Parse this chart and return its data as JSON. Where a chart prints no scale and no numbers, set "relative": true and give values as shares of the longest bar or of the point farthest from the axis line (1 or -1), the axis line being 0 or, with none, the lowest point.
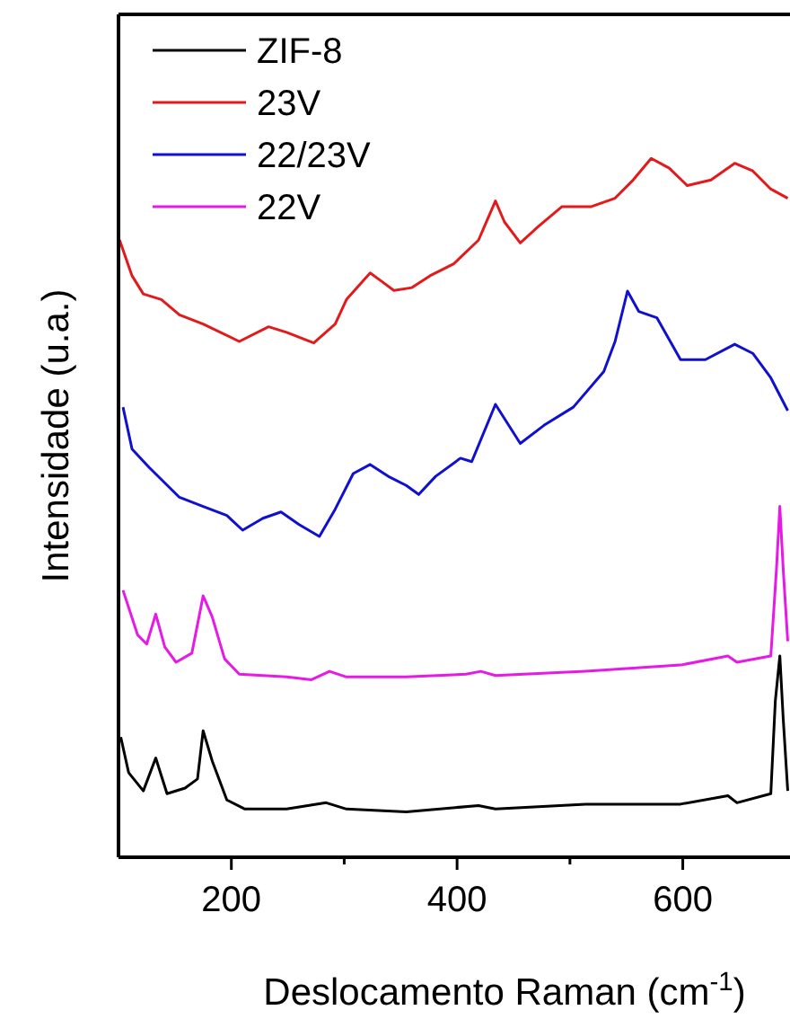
{
  "chart_data": {
    "type": "line",
    "relative": true,
    "xlabel": "Deslocamento Raman (cm$^{-1}$)",
    "ylabel": "Intensidade (u.a.)",
    "xlim": [
      100,
      695
    ],
    "xticks": [
      200,
      {
        "value": 300,
        "label": null
      },
      400,
      {
        "value": 500,
        "label": null
      },
      600
    ],
    "legend": "top left",
    "series": [
      {
        "name": "ZIF-8",
        "color": "#000000",
        "x": [
          102,
          109,
          122,
          133,
          143,
          159,
          170,
          175,
          183,
          196,
          212,
          249,
          284,
          302,
          355,
          419,
          434,
          514,
          598,
          640,
          648,
          678,
          682,
          686,
          689,
          693
        ],
        "values": [
          0.172,
          0.121,
          0.095,
          0.142,
          0.091,
          0.099,
          0.112,
          0.181,
          0.138,
          0.082,
          0.069,
          0.069,
          0.078,
          0.069,
          0.065,
          0.074,
          0.069,
          0.076,
          0.076,
          0.088,
          0.078,
          0.091,
          0.224,
          0.288,
          0.198,
          0.095
        ]
      },
      {
        "name": "23V",
        "color": "#e31a1c",
        "x": [
          101,
          112,
          122,
          138,
          154,
          175,
          207,
          233,
          249,
          273,
          292,
          302,
          323,
          334,
          344,
          360,
          376,
          397,
          419,
          434,
          442,
          456,
          471,
          493,
          519,
          540,
          556,
          572,
          588,
          604,
          625,
          646,
          662,
          678,
          693
        ],
        "values": [
          0.883,
          0.832,
          0.806,
          0.798,
          0.776,
          0.763,
          0.738,
          0.759,
          0.751,
          0.736,
          0.763,
          0.798,
          0.836,
          0.823,
          0.811,
          0.815,
          0.832,
          0.849,
          0.883,
          0.939,
          0.909,
          0.879,
          0.901,
          0.931,
          0.931,
          0.943,
          0.969,
          1,
          0.986,
          0.961,
          0.969,
          0.993,
          0.982,
          0.956,
          0.943
        ]
      },
      {
        "name": "22/23V",
        "color": "#1010d0",
        "x": [
          104,
          112,
          127,
          154,
          175,
          196,
          210,
          228,
          244,
          260,
          278,
          292,
          308,
          323,
          339,
          355,
          366,
          381,
          403,
          413,
          434,
          456,
          477,
          503,
          530,
          540,
          551,
          561,
          577,
          598,
          620,
          646,
          662,
          678,
          693
        ],
        "values": [
          0.644,
          0.584,
          0.558,
          0.515,
          0.502,
          0.489,
          0.468,
          0.485,
          0.494,
          0.476,
          0.459,
          0.498,
          0.549,
          0.562,
          0.545,
          0.532,
          0.519,
          0.545,
          0.571,
          0.566,
          0.648,
          0.592,
          0.618,
          0.644,
          0.695,
          0.738,
          0.81,
          0.781,
          0.772,
          0.712,
          0.712,
          0.734,
          0.721,
          0.686,
          0.639
        ]
      },
      {
        "name": "22V",
        "color": "#e61ae6",
        "x": [
          104,
          117,
          125,
          133,
          141,
          151,
          165,
          175,
          183,
          194,
          207,
          249,
          271,
          287,
          302,
          355,
          408,
          421,
          434,
          514,
          598,
          640,
          648,
          678,
          683,
          686,
          689,
          693
        ],
        "values": [
          0.382,
          0.318,
          0.305,
          0.348,
          0.301,
          0.279,
          0.292,
          0.374,
          0.344,
          0.284,
          0.262,
          0.258,
          0.254,
          0.266,
          0.258,
          0.258,
          0.262,
          0.266,
          0.26,
          0.266,
          0.275,
          0.288,
          0.279,
          0.288,
          0.412,
          0.502,
          0.412,
          0.309
        ]
      }
    ]
  }
}
